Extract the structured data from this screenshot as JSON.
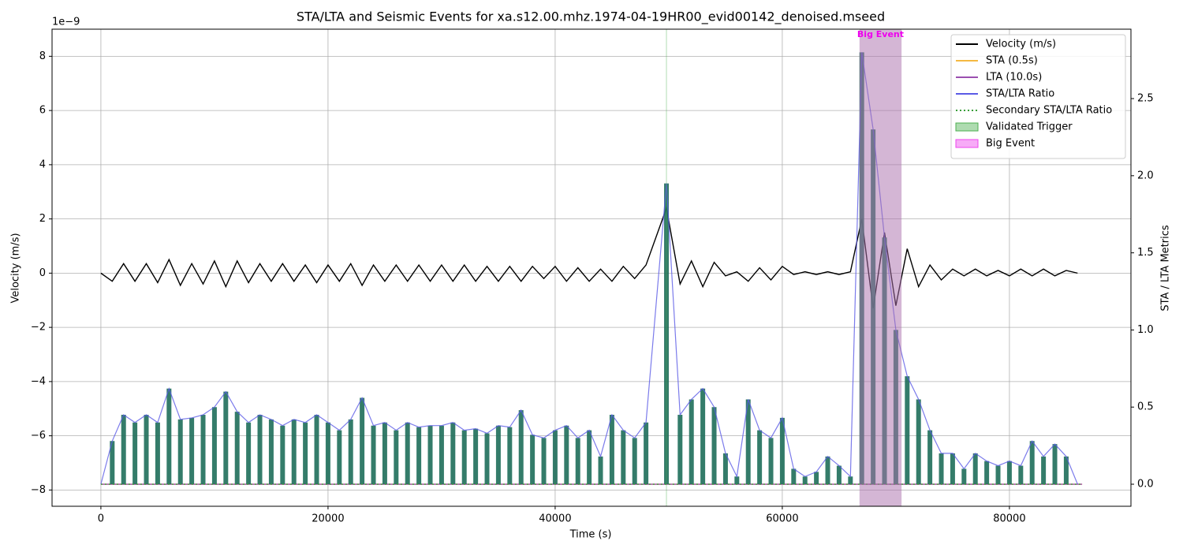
{
  "chart_data": {
    "type": "line",
    "title": "STA/LTA and Seismic Events for xa.s12.00.mhz.1974-04-19HR00_evid00142_denoised.mseed",
    "xlabel": "Time (s)",
    "ylabel": "Velocity (m/s)",
    "y2label": "STA / LTA Metrics",
    "y_offset_label": "1e−9",
    "grid": true,
    "legend": "upper right",
    "xlim": [
      -4300,
      90700
    ],
    "xticks": [
      0,
      20000,
      40000,
      60000,
      80000
    ],
    "ylim": [
      -8.6,
      9.0
    ],
    "yticks": [
      {
        "value": -8,
        "label": "−8"
      },
      {
        "value": -6,
        "label": "−6"
      },
      {
        "value": -4,
        "label": "−4"
      },
      {
        "value": -2,
        "label": "−2"
      },
      0,
      2,
      4,
      6,
      8
    ],
    "y2lim": [
      -0.143,
      2.95
    ],
    "y2ticks": [
      {
        "value": 0,
        "label": "0.0"
      },
      0.5,
      {
        "value": 1,
        "label": "1.0"
      },
      1.5,
      {
        "value": 2,
        "label": "2.0"
      },
      2.5
    ],
    "x": [
      0,
      1000,
      2000,
      3000,
      4000,
      5000,
      6000,
      7000,
      8000,
      9000,
      10000,
      11000,
      12000,
      13000,
      14000,
      15000,
      16000,
      17000,
      18000,
      19000,
      20000,
      21000,
      22000,
      23000,
      24000,
      25000,
      26000,
      27000,
      28000,
      29000,
      30000,
      31000,
      32000,
      33000,
      34000,
      35000,
      36000,
      37000,
      38000,
      39000,
      40000,
      41000,
      42000,
      43000,
      44000,
      45000,
      46000,
      47000,
      48000,
      49800,
      51000,
      52000,
      53000,
      54000,
      55000,
      56000,
      57000,
      58000,
      59000,
      60000,
      61000,
      62000,
      63000,
      64000,
      65000,
      66000,
      67000,
      68000,
      69000,
      70000,
      71000,
      72000,
      73000,
      74000,
      75000,
      76000,
      77000,
      78000,
      79000,
      80000,
      81000,
      82000,
      83000,
      84000,
      85000,
      86000
    ],
    "series": [
      {
        "name": "Velocity (m/s)",
        "color": "#000000",
        "values": [
          0,
          -0.3,
          0.35,
          -0.3,
          0.35,
          -0.35,
          0.5,
          -0.45,
          0.35,
          -0.4,
          0.45,
          -0.5,
          0.45,
          -0.35,
          0.35,
          -0.3,
          0.35,
          -0.3,
          0.3,
          -0.35,
          0.3,
          -0.3,
          0.35,
          -0.45,
          0.3,
          -0.3,
          0.3,
          -0.3,
          0.3,
          -0.3,
          0.3,
          -0.3,
          0.3,
          -0.3,
          0.25,
          -0.3,
          0.25,
          -0.3,
          0.25,
          -0.2,
          0.25,
          -0.3,
          0.2,
          -0.3,
          0.15,
          -0.3,
          0.25,
          -0.2,
          0.3,
          2.4,
          -0.4,
          0.45,
          -0.5,
          0.4,
          -0.1,
          0.05,
          -0.3,
          0.2,
          -0.25,
          0.25,
          -0.05,
          0.05,
          -0.05,
          0.05,
          -0.05,
          0.05,
          2.0,
          -1.3,
          1.5,
          -1.2,
          0.9,
          -0.5,
          0.3,
          -0.25,
          0.15,
          -0.1,
          0.15,
          -0.1,
          0.1,
          -0.1,
          0.15,
          -0.1,
          0.15,
          -0.1,
          0.1,
          0
        ]
      },
      {
        "name": "STA (0.5s)",
        "color": "#f5b942",
        "axis": "y2",
        "x": [
          0,
          86400
        ],
        "values": [
          0,
          0
        ]
      },
      {
        "name": "LTA (10.0s)",
        "color": "#9b4fb0",
        "axis": "y2",
        "x": [
          0,
          86400
        ],
        "values": [
          0,
          0
        ]
      },
      {
        "name": "STA/LTA Ratio",
        "color": "#5a5ae6",
        "fill": "#1f6e5a",
        "axis": "y2",
        "values": [
          0,
          0.28,
          0.45,
          0.4,
          0.45,
          0.4,
          0.62,
          0.42,
          0.43,
          0.45,
          0.5,
          0.6,
          0.47,
          0.4,
          0.45,
          0.42,
          0.38,
          0.42,
          0.4,
          0.45,
          0.4,
          0.35,
          0.42,
          0.56,
          0.38,
          0.4,
          0.35,
          0.4,
          0.37,
          0.38,
          0.38,
          0.4,
          0.35,
          0.36,
          0.33,
          0.38,
          0.37,
          0.48,
          0.32,
          0.3,
          0.35,
          0.38,
          0.3,
          0.35,
          0.18,
          0.45,
          0.35,
          0.3,
          0.4,
          1.95,
          0.45,
          0.55,
          0.62,
          0.5,
          0.2,
          0.05,
          0.55,
          0.35,
          0.3,
          0.43,
          0.1,
          0.05,
          0.08,
          0.18,
          0.12,
          0.05,
          2.8,
          2.3,
          1.6,
          1.0,
          0.7,
          0.55,
          0.35,
          0.2,
          0.2,
          0.1,
          0.2,
          0.15,
          0.12,
          0.15,
          0.12,
          0.28,
          0.18,
          0.26,
          0.18,
          0
        ]
      },
      {
        "name": "Secondary STA/LTA Ratio",
        "color": "#3aa03a",
        "style": "dotted",
        "axis": "y2",
        "x": [
          0,
          86400
        ],
        "values": [
          0,
          0
        ]
      }
    ],
    "spans": [
      {
        "label": "Validated Trigger",
        "color": "#4caf50",
        "ranges": [
          [
            49750,
            49850
          ],
          [
            66800,
            70500
          ]
        ]
      },
      {
        "label": "Big Event",
        "color": "#ee44ee",
        "ranges": [
          [
            66800,
            70500
          ]
        ]
      }
    ],
    "annotations": [
      {
        "text": "Big Event",
        "x": 68650,
        "color": "#ee00ee"
      }
    ]
  }
}
